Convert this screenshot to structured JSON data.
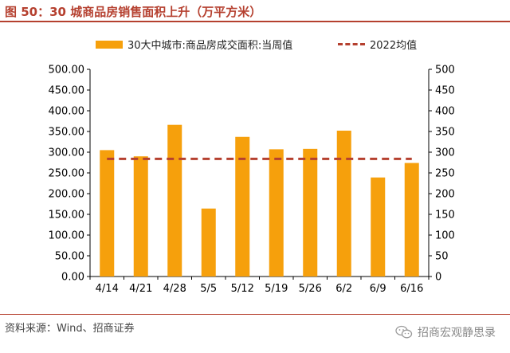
{
  "figure": {
    "title": "图 50：30 城商品房销售面积上升（万平方米）",
    "source": "资料来源：Wind、招商证券",
    "watermark": "招商宏观静思录",
    "watermark_icon": "wechat-icon"
  },
  "colors": {
    "bar": "#f6a00c",
    "avg_line": "#b5402f",
    "title": "#b5402f"
  },
  "chart_data": {
    "type": "bar",
    "categories": [
      "4/14",
      "4/21",
      "4/28",
      "5/5",
      "5/12",
      "5/19",
      "5/26",
      "6/2",
      "6/9",
      "6/16"
    ],
    "series": [
      {
        "name": "30大中城市:商品房成交面积:当周值",
        "type": "bar",
        "values": [
          305,
          290,
          366,
          164,
          337,
          307,
          308,
          352,
          239,
          274
        ]
      },
      {
        "name": "2022均值",
        "type": "line",
        "style": "dashed",
        "values": [
          284,
          284,
          284,
          284,
          284,
          284,
          284,
          284,
          284,
          284
        ]
      }
    ],
    "ylim": [
      0,
      500
    ],
    "left_ticks": [
      "0.00",
      "50.00",
      "100.00",
      "150.00",
      "200.00",
      "250.00",
      "300.00",
      "350.00",
      "400.00",
      "450.00",
      "500.00"
    ],
    "right_ticks": [
      "0",
      "50",
      "100",
      "150",
      "200",
      "250",
      "300",
      "350",
      "400",
      "450",
      "500"
    ],
    "grid": false,
    "legend_position": "top"
  }
}
